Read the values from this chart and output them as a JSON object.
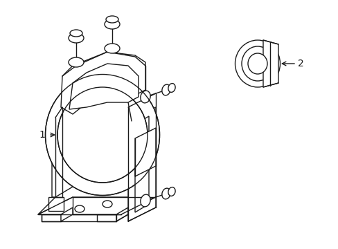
{
  "background_color": "#ffffff",
  "line_color": "#1a1a1a",
  "line_width": 1.0,
  "label1": "1",
  "label2": "2",
  "fig_width": 4.89,
  "fig_height": 3.6,
  "dpi": 100
}
